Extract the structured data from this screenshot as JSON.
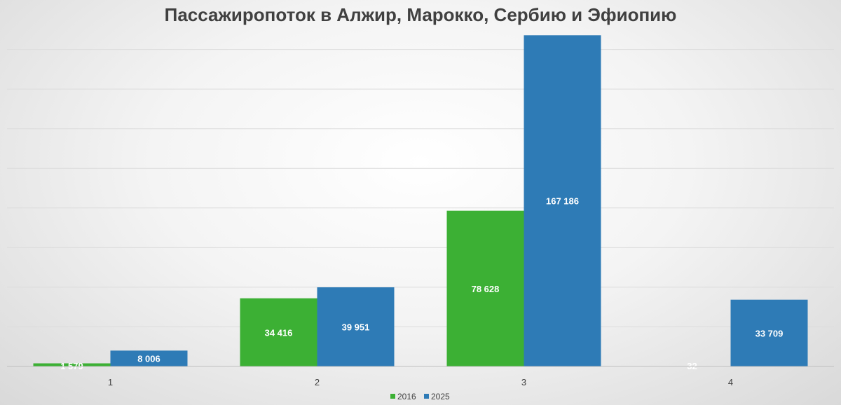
{
  "chart_data": {
    "type": "bar",
    "title": "Пассажиропоток в Алжир, Марокко, Сербию и Эфиопию",
    "categories": [
      "1",
      "2",
      "3",
      "4"
    ],
    "series": [
      {
        "name": "2016",
        "color": "#3cb034",
        "values": [
          1579,
          34416,
          78628,
          32
        ],
        "labels": [
          "1 579",
          "34 416",
          "78 628",
          "32"
        ]
      },
      {
        "name": "2025",
        "color": "#2e7bb6",
        "values": [
          8006,
          39951,
          167186,
          33709
        ],
        "labels": [
          "8 006",
          "39 951",
          "167 186",
          "33 709"
        ]
      }
    ],
    "ylim": [
      0,
      168000
    ],
    "grid": true,
    "legend_position": "bottom"
  }
}
